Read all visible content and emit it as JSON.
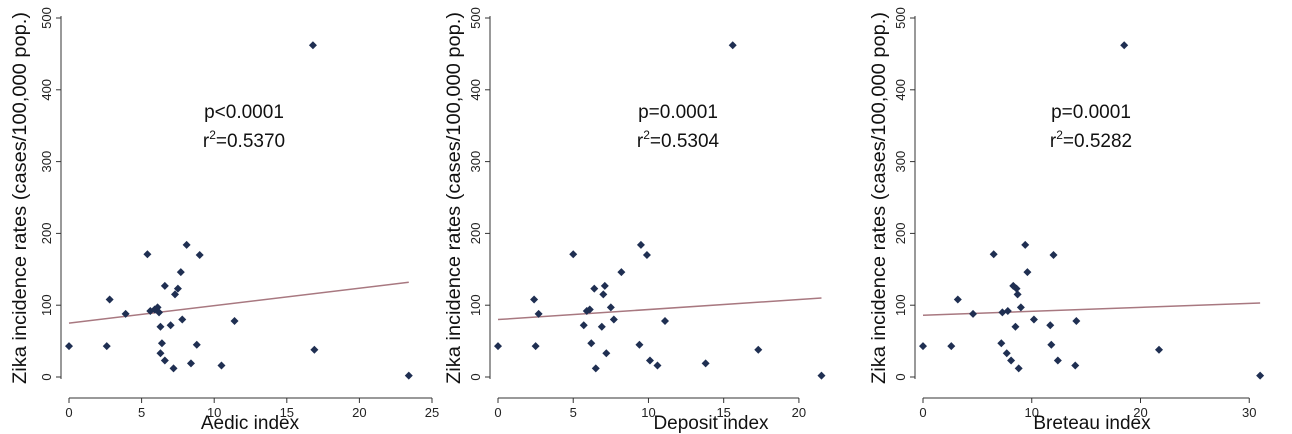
{
  "figure": {
    "styles": {
      "point_color": "#1f2f52",
      "fit_color": "#a87880",
      "axis_color": "#333333",
      "text_color": "#111111"
    }
  },
  "chart_data": [
    {
      "type": "scatter",
      "title": "",
      "xlabel": "Aedic index",
      "ylabel": "Zika incidence rates (cases/100,000 pop.)",
      "xlim": [
        0,
        25
      ],
      "ylim": [
        0,
        500
      ],
      "xticks": [
        "0",
        "5",
        "10",
        "15",
        "20",
        "25"
      ],
      "yticks": [
        "0",
        "100",
        "200",
        "300",
        "400",
        "500"
      ],
      "annotation": {
        "p": "p<0.0001",
        "r2_prefix": "r",
        "r2_sup": "2",
        "r2_value": "=0.5370"
      },
      "fit_line": {
        "x": [
          0,
          23.4
        ],
        "y": [
          75,
          132
        ]
      },
      "points": [
        {
          "x": 0,
          "y": 43
        },
        {
          "x": 2.6,
          "y": 43
        },
        {
          "x": 2.8,
          "y": 108
        },
        {
          "x": 3.9,
          "y": 88
        },
        {
          "x": 5.4,
          "y": 171
        },
        {
          "x": 5.6,
          "y": 92
        },
        {
          "x": 5.9,
          "y": 94
        },
        {
          "x": 6.1,
          "y": 97
        },
        {
          "x": 6.2,
          "y": 90
        },
        {
          "x": 6.3,
          "y": 33
        },
        {
          "x": 6.3,
          "y": 70
        },
        {
          "x": 6.4,
          "y": 47
        },
        {
          "x": 6.6,
          "y": 127
        },
        {
          "x": 6.6,
          "y": 23
        },
        {
          "x": 7.0,
          "y": 72
        },
        {
          "x": 7.2,
          "y": 12
        },
        {
          "x": 7.3,
          "y": 115
        },
        {
          "x": 7.5,
          "y": 123
        },
        {
          "x": 7.7,
          "y": 146
        },
        {
          "x": 7.8,
          "y": 80
        },
        {
          "x": 8.1,
          "y": 184
        },
        {
          "x": 8.4,
          "y": 19
        },
        {
          "x": 8.8,
          "y": 45
        },
        {
          "x": 9.0,
          "y": 170
        },
        {
          "x": 10.5,
          "y": 16
        },
        {
          "x": 11.4,
          "y": 78
        },
        {
          "x": 16.8,
          "y": 462
        },
        {
          "x": 16.9,
          "y": 38
        },
        {
          "x": 23.4,
          "y": 2
        }
      ]
    },
    {
      "type": "scatter",
      "title": "",
      "xlabel": "Deposit index",
      "ylabel": "Zika incidence rates (cases/100,000 pop.)",
      "xlim": [
        0,
        22
      ],
      "ylim": [
        0,
        500
      ],
      "xticks": [
        "0",
        "5",
        "10",
        "15",
        "20"
      ],
      "yticks": [
        "0",
        "100",
        "200",
        "300",
        "400",
        "500"
      ],
      "annotation": {
        "p": "p=0.0001",
        "r2_prefix": "r",
        "r2_sup": "2",
        "r2_value": "=0.5304"
      },
      "fit_line": {
        "x": [
          0,
          21.5
        ],
        "y": [
          80,
          110
        ]
      },
      "points": [
        {
          "x": 0,
          "y": 43
        },
        {
          "x": 2.4,
          "y": 108
        },
        {
          "x": 2.5,
          "y": 43
        },
        {
          "x": 2.7,
          "y": 88
        },
        {
          "x": 5.0,
          "y": 171
        },
        {
          "x": 5.7,
          "y": 72
        },
        {
          "x": 5.9,
          "y": 92
        },
        {
          "x": 6.1,
          "y": 94
        },
        {
          "x": 6.2,
          "y": 47
        },
        {
          "x": 6.4,
          "y": 123
        },
        {
          "x": 6.5,
          "y": 12
        },
        {
          "x": 6.9,
          "y": 70
        },
        {
          "x": 7.0,
          "y": 115
        },
        {
          "x": 7.1,
          "y": 127
        },
        {
          "x": 7.2,
          "y": 33
        },
        {
          "x": 7.5,
          "y": 97
        },
        {
          "x": 7.7,
          "y": 80
        },
        {
          "x": 8.2,
          "y": 146
        },
        {
          "x": 9.4,
          "y": 45
        },
        {
          "x": 9.5,
          "y": 184
        },
        {
          "x": 9.9,
          "y": 170
        },
        {
          "x": 10.1,
          "y": 23
        },
        {
          "x": 10.6,
          "y": 16
        },
        {
          "x": 11.1,
          "y": 78
        },
        {
          "x": 13.8,
          "y": 19
        },
        {
          "x": 15.6,
          "y": 462
        },
        {
          "x": 17.3,
          "y": 38
        },
        {
          "x": 21.5,
          "y": 2
        }
      ]
    },
    {
      "type": "scatter",
      "title": "",
      "xlabel": "Breteau index",
      "ylabel": "Zika incidence rates (cases/100,000 pop.)",
      "xlim": [
        0,
        32
      ],
      "ylim": [
        0,
        500
      ],
      "xticks": [
        "0",
        "10",
        "20",
        "30"
      ],
      "yticks": [
        "0",
        "100",
        "200",
        "300",
        "400",
        "500"
      ],
      "annotation": {
        "p": "p=0.0001",
        "r2_prefix": "r",
        "r2_sup": "2",
        "r2_value": "=0.5282"
      },
      "fit_line": {
        "x": [
          0,
          31
        ],
        "y": [
          86,
          103
        ]
      },
      "points": [
        {
          "x": 0,
          "y": 43
        },
        {
          "x": 2.6,
          "y": 43
        },
        {
          "x": 3.2,
          "y": 108
        },
        {
          "x": 4.6,
          "y": 88
        },
        {
          "x": 6.5,
          "y": 171
        },
        {
          "x": 7.2,
          "y": 47
        },
        {
          "x": 7.3,
          "y": 90
        },
        {
          "x": 7.7,
          "y": 33
        },
        {
          "x": 7.8,
          "y": 92
        },
        {
          "x": 8.1,
          "y": 23
        },
        {
          "x": 8.3,
          "y": 127
        },
        {
          "x": 8.5,
          "y": 70
        },
        {
          "x": 8.6,
          "y": 123
        },
        {
          "x": 8.7,
          "y": 115
        },
        {
          "x": 8.8,
          "y": 12
        },
        {
          "x": 9.0,
          "y": 97
        },
        {
          "x": 9.4,
          "y": 184
        },
        {
          "x": 9.6,
          "y": 146
        },
        {
          "x": 10.2,
          "y": 80
        },
        {
          "x": 11.7,
          "y": 72
        },
        {
          "x": 11.8,
          "y": 45
        },
        {
          "x": 12.0,
          "y": 170
        },
        {
          "x": 12.4,
          "y": 23
        },
        {
          "x": 14.0,
          "y": 16
        },
        {
          "x": 14.1,
          "y": 78
        },
        {
          "x": 18.5,
          "y": 462
        },
        {
          "x": 21.7,
          "y": 38
        },
        {
          "x": 31.0,
          "y": 2
        }
      ]
    }
  ]
}
